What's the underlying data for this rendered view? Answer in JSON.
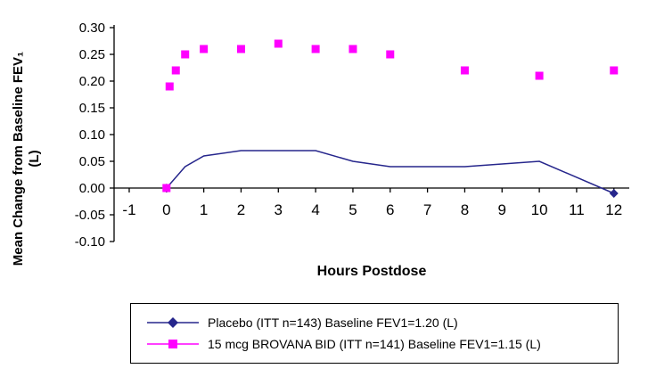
{
  "chart_data": {
    "type": "line",
    "title": "",
    "xlabel": "Hours Postdose",
    "ylabel_line1": "Mean Change from Baseline FEV₁",
    "ylabel_line2": "(L)",
    "xlim": [
      -1.4,
      12.4
    ],
    "ylim": [
      -0.1,
      0.3
    ],
    "xticks": [
      -1,
      0,
      1,
      2,
      3,
      4,
      5,
      6,
      7,
      8,
      9,
      10,
      11,
      12
    ],
    "yticks": [
      0.3,
      0.25,
      0.2,
      0.15,
      0.1,
      0.05,
      0.0,
      -0.05,
      -0.1
    ],
    "ytick_labels": [
      "0.30",
      "0.25",
      "0.20",
      "0.15",
      "0.10",
      "0.05",
      "0.00",
      "-0.05",
      "-0.10"
    ],
    "grid": false,
    "legend_position": "bottom",
    "series": [
      {
        "name": "Placebo (ITT n=143) Baseline FEV1=1.20 (L)",
        "color": "#26268C",
        "marker": "diamond",
        "line": true,
        "x": [
          0,
          0.25,
          0.5,
          1,
          2,
          3,
          4,
          5,
          6,
          8,
          10,
          12
        ],
        "y": [
          0.0,
          0.02,
          0.04,
          0.06,
          0.07,
          0.07,
          0.07,
          0.05,
          0.04,
          0.04,
          0.05,
          -0.01
        ],
        "markers_at_x": [
          0,
          12
        ],
        "markers_at_y": [
          0.0,
          -0.01
        ]
      },
      {
        "name": "15 mcg BROVANA BID (ITT n=141) Baseline FEV1=1.15 (L)",
        "color": "#FF00FF",
        "marker": "square",
        "line": false,
        "x": [
          0,
          0.083,
          0.25,
          0.5,
          1,
          2,
          3,
          4,
          5,
          6,
          8,
          10,
          12
        ],
        "y": [
          0.0,
          0.19,
          0.22,
          0.25,
          0.26,
          0.26,
          0.27,
          0.26,
          0.26,
          0.25,
          0.22,
          0.21,
          0.22
        ],
        "markers_at_x": [
          0,
          0.083,
          0.25,
          0.5,
          1,
          2,
          3,
          4,
          5,
          6,
          8,
          10,
          12
        ],
        "markers_at_y": [
          0.0,
          0.19,
          0.22,
          0.25,
          0.26,
          0.26,
          0.27,
          0.26,
          0.26,
          0.25,
          0.22,
          0.21,
          0.22
        ]
      }
    ]
  }
}
